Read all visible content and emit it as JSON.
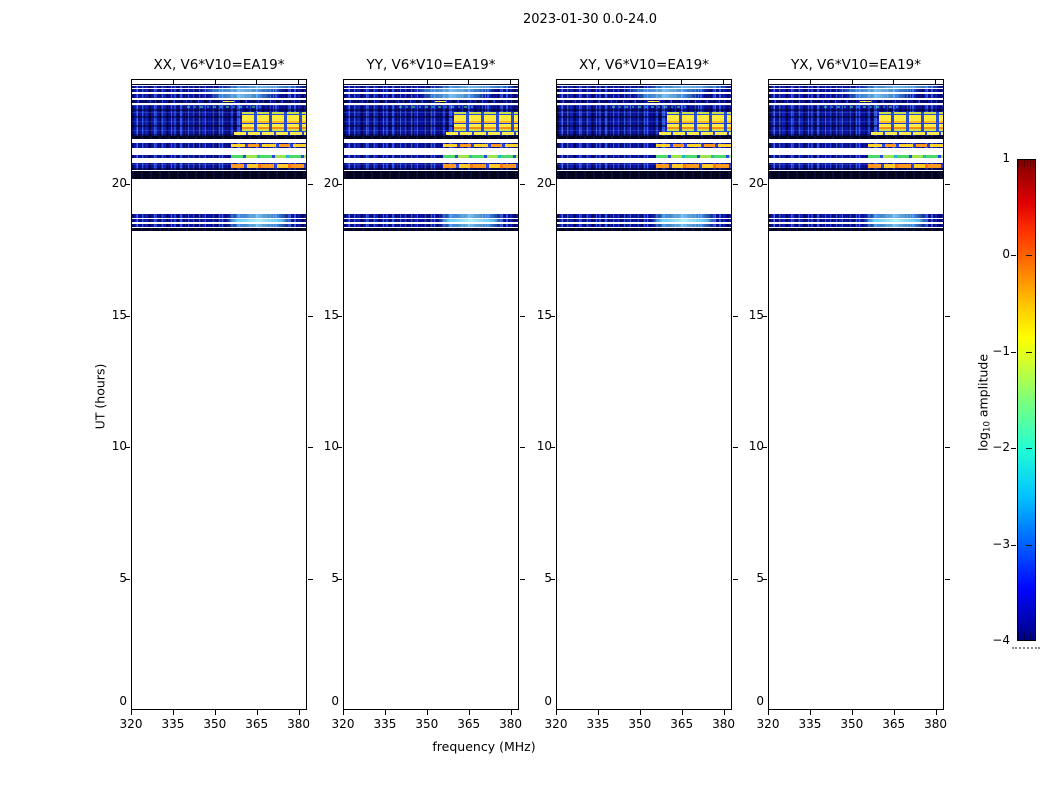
{
  "figure": {
    "title": "2023-01-30 0.0-24.0",
    "xlabel": "frequency (MHz)",
    "ylabel": "UT (hours)",
    "colorbar_label_prefix": "log",
    "colorbar_label_sub": "10",
    "colorbar_label_suffix": " amplitude"
  },
  "panels": [
    {
      "id": "XX",
      "title": "XX, V6*V10=EA19*"
    },
    {
      "id": "YY",
      "title": "YY, V6*V10=EA19*"
    },
    {
      "id": "XY",
      "title": "XY, V6*V10=EA19*"
    },
    {
      "id": "YX",
      "title": "YX, V6*V10=EA19*"
    }
  ],
  "axes": {
    "x_ticks": [
      {
        "label": "320",
        "f": 320
      },
      {
        "label": "335",
        "f": 335
      },
      {
        "label": "350",
        "f": 350
      },
      {
        "label": "365",
        "f": 365
      },
      {
        "label": "380",
        "f": 380
      }
    ],
    "y_ticks": [
      {
        "label": "0",
        "ut": 0
      },
      {
        "label": "5",
        "ut": 5
      },
      {
        "label": "10",
        "ut": 10
      },
      {
        "label": "15",
        "ut": 15
      },
      {
        "label": "20",
        "ut": 20
      }
    ],
    "x_range_mhz": [
      320,
      383
    ],
    "y_range_hours": [
      0,
      24
    ]
  },
  "colorbar": {
    "ticks": [
      {
        "label": "1",
        "v": 1
      },
      {
        "label": "0",
        "v": 0
      },
      {
        "label": "−1",
        "v": -1
      },
      {
        "label": "−2",
        "v": -2
      },
      {
        "label": "−3",
        "v": -3
      },
      {
        "label": "−4",
        "v": -4
      }
    ],
    "range": [
      -4,
      1
    ],
    "colormap": "jet"
  },
  "bands": [
    {
      "ut": [
        23.86,
        23.8
      ],
      "kind": "navy",
      "patches": []
    },
    {
      "ut": [
        23.78,
        23.7
      ],
      "kind": "blue",
      "patches": [
        {
          "f": [
            352,
            383
          ],
          "kind": "cyan-weak"
        }
      ]
    },
    {
      "ut": [
        23.67,
        23.54
      ],
      "kind": "blue",
      "patches": [
        {
          "f": [
            345,
            375
          ],
          "kind": "cyan-weak"
        }
      ]
    },
    {
      "ut": [
        23.47,
        23.32
      ],
      "kind": "blue",
      "patches": [
        {
          "f": [
            348,
            372
          ],
          "kind": "cyan-weak"
        }
      ]
    },
    {
      "ut": [
        23.25,
        23.12
      ],
      "kind": "blue-dark",
      "patches": [
        {
          "f": [
            353,
            357
          ],
          "kind": "yellow-dash"
        }
      ]
    },
    {
      "ut": [
        23.05,
        22.82
      ],
      "kind": "blue-striped",
      "patches": [
        {
          "f": [
            340,
            368
          ],
          "kind": "green-speck"
        }
      ]
    },
    {
      "ut": [
        22.82,
        21.88
      ],
      "kind": "blue-striped",
      "patches": [
        {
          "f": [
            360,
            383
          ],
          "kind": "yellow-blocks"
        },
        {
          "f": [
            357,
            383
          ],
          "kind": "yellow-bottom"
        }
      ]
    },
    {
      "ut": [
        21.86,
        21.76
      ],
      "kind": "black",
      "patches": []
    },
    {
      "ut": [
        21.59,
        21.43
      ],
      "kind": "blue",
      "patches": [
        {
          "f": [
            356,
            383
          ],
          "kind": "warm-row"
        }
      ]
    },
    {
      "ut": [
        21.16,
        21.02
      ],
      "kind": "blue",
      "patches": [
        {
          "f": [
            356,
            383
          ],
          "kind": "green-row"
        }
      ]
    },
    {
      "ut": [
        20.85,
        20.56
      ],
      "kind": "blue-striped",
      "patches": [
        {
          "f": [
            356,
            383
          ],
          "kind": "orange-row"
        }
      ]
    },
    {
      "ut": [
        20.55,
        20.25
      ],
      "kind": "black",
      "patches": []
    },
    {
      "ut": [
        18.9,
        18.76
      ],
      "kind": "blue",
      "patches": [
        {
          "f": [
            354,
            378
          ],
          "kind": "cyan-weak"
        }
      ]
    },
    {
      "ut": [
        18.72,
        18.58
      ],
      "kind": "blue",
      "patches": [
        {
          "f": [
            354,
            378
          ],
          "kind": "cyan-bright"
        }
      ]
    },
    {
      "ut": [
        18.54,
        18.4
      ],
      "kind": "blue",
      "patches": [
        {
          "f": [
            354,
            378
          ],
          "kind": "cyan-weak"
        }
      ]
    },
    {
      "ut": [
        18.36,
        18.27
      ],
      "kind": "black",
      "patches": []
    }
  ],
  "chart_data": {
    "type": "heatmap",
    "title": "2023-01-30 0.0-24.0",
    "xlabel": "frequency (MHz)",
    "ylabel": "UT (hours)",
    "x_range_mhz": [
      320,
      383
    ],
    "y_range_hours": [
      0,
      24
    ],
    "x_ticks": [
      320,
      335,
      350,
      365,
      380
    ],
    "y_ticks": [
      0,
      5,
      10,
      15,
      20
    ],
    "colorbar": {
      "label": "log10 amplitude",
      "ticks": [
        1,
        0,
        -1,
        -2,
        -3,
        -4
      ],
      "range": [
        -4,
        1
      ],
      "colormap": "jet"
    },
    "panels": [
      "XX, V6*V10=EA19*",
      "YY, V6*V10=EA19*",
      "XY, V6*V10=EA19*",
      "YX, V6*V10=EA19*"
    ],
    "background": "white / no data outside listed UT bands (UT 0-18.2 is empty)",
    "bands_description": [
      {
        "ut": [
          23.8,
          23.86
        ],
        "amp_log10": -4,
        "note": "very dark navy row just below top frame"
      },
      {
        "ut": [
          23.54,
          23.78
        ],
        "amp_log10": -3,
        "note": "two thin speckled blue rows, brighter cyan toward 352-383 MHz"
      },
      {
        "ut": [
          23.32,
          23.47
        ],
        "amp_log10": -3,
        "note": "speckled blue row with faint cyan patch near 348-372 MHz"
      },
      {
        "ut": [
          23.12,
          23.25
        ],
        "amp_log10": -3.5,
        "note": "darker blue row with tiny yellow dash near 355 MHz"
      },
      {
        "ut": [
          21.88,
          23.05
        ],
        "amp_log10": -3,
        "note": "broad speckled blue band; bright yellow/orange blocks (amp ~ -1 to -0.5) at 360-383 MHz separated by blue gaps near 366, 370, 376 MHz"
      },
      {
        "ut": [
          21.76,
          21.86
        ],
        "amp_log10": -4,
        "note": "near-black row"
      },
      {
        "ut": [
          21.43,
          21.59
        ],
        "amp_log10": -3,
        "note": "thin blue row with yellow/orange segments 356-383 MHz"
      },
      {
        "ut": [
          21.02,
          21.16
        ],
        "amp_log10": -3,
        "note": "thin blue row with green segments 356-383 MHz"
      },
      {
        "ut": [
          20.56,
          20.85
        ],
        "amp_log10": -3,
        "note": "blue band with orange segments 356-383 MHz"
      },
      {
        "ut": [
          20.25,
          20.55
        ],
        "amp_log10": -4,
        "note": "solid near-black band"
      },
      {
        "ut": [
          18.4,
          18.9
        ],
        "amp_log10": -3,
        "note": "three thin blue rows with cyan brightening (amp ~ -2) at 354-378 MHz"
      },
      {
        "ut": [
          18.27,
          18.36
        ],
        "amp_log10": -4,
        "note": "near-black row"
      }
    ],
    "note": "all four polarization panels (XX, YY, XY, YX) show essentially identical band structure"
  }
}
